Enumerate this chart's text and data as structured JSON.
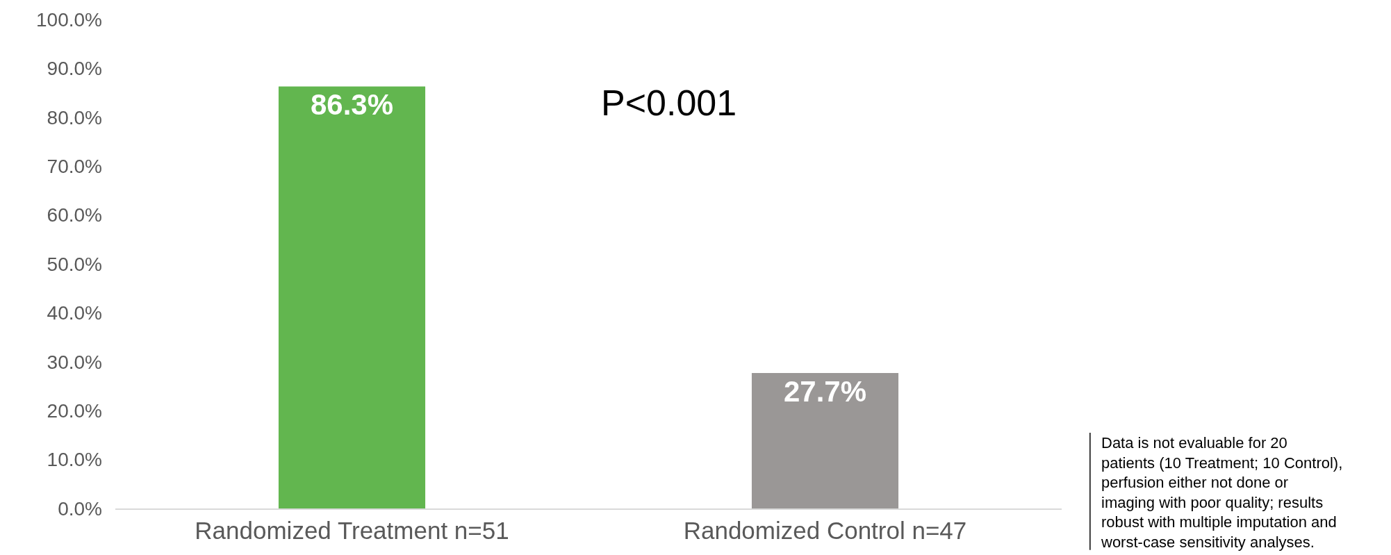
{
  "chart_data": {
    "type": "bar",
    "categories": [
      "Randomized Treatment n=51",
      "Randomized Control n=47"
    ],
    "values": [
      86.3,
      27.7
    ],
    "colors": [
      "#62b64f",
      "#9a9796"
    ],
    "value_labels": [
      "86.3%",
      "27.7%"
    ],
    "ylim": [
      0,
      100
    ],
    "yticks": [
      {
        "value": 0,
        "label": "0.0%"
      },
      {
        "value": 10,
        "label": "10.0%"
      },
      {
        "value": 20,
        "label": "20.0%"
      },
      {
        "value": 30,
        "label": "30.0%"
      },
      {
        "value": 40,
        "label": "40.0%"
      },
      {
        "value": 50,
        "label": "50.0%"
      },
      {
        "value": 60,
        "label": "60.0%"
      },
      {
        "value": 70,
        "label": "70.0%"
      },
      {
        "value": 80,
        "label": "80.0%"
      },
      {
        "value": 90,
        "label": "90.0%"
      },
      {
        "value": 100,
        "label": "100.0%"
      }
    ],
    "grid": false,
    "legend": false,
    "annotations": [
      "P<0.001",
      "Data is not evaluable for 20\npatients (10 Treatment; 10 Control),\nperfusion either not done or\nimaging with poor quality; results\nrobust with multiple imputation and\nworst-case sensitivity analyses."
    ]
  }
}
